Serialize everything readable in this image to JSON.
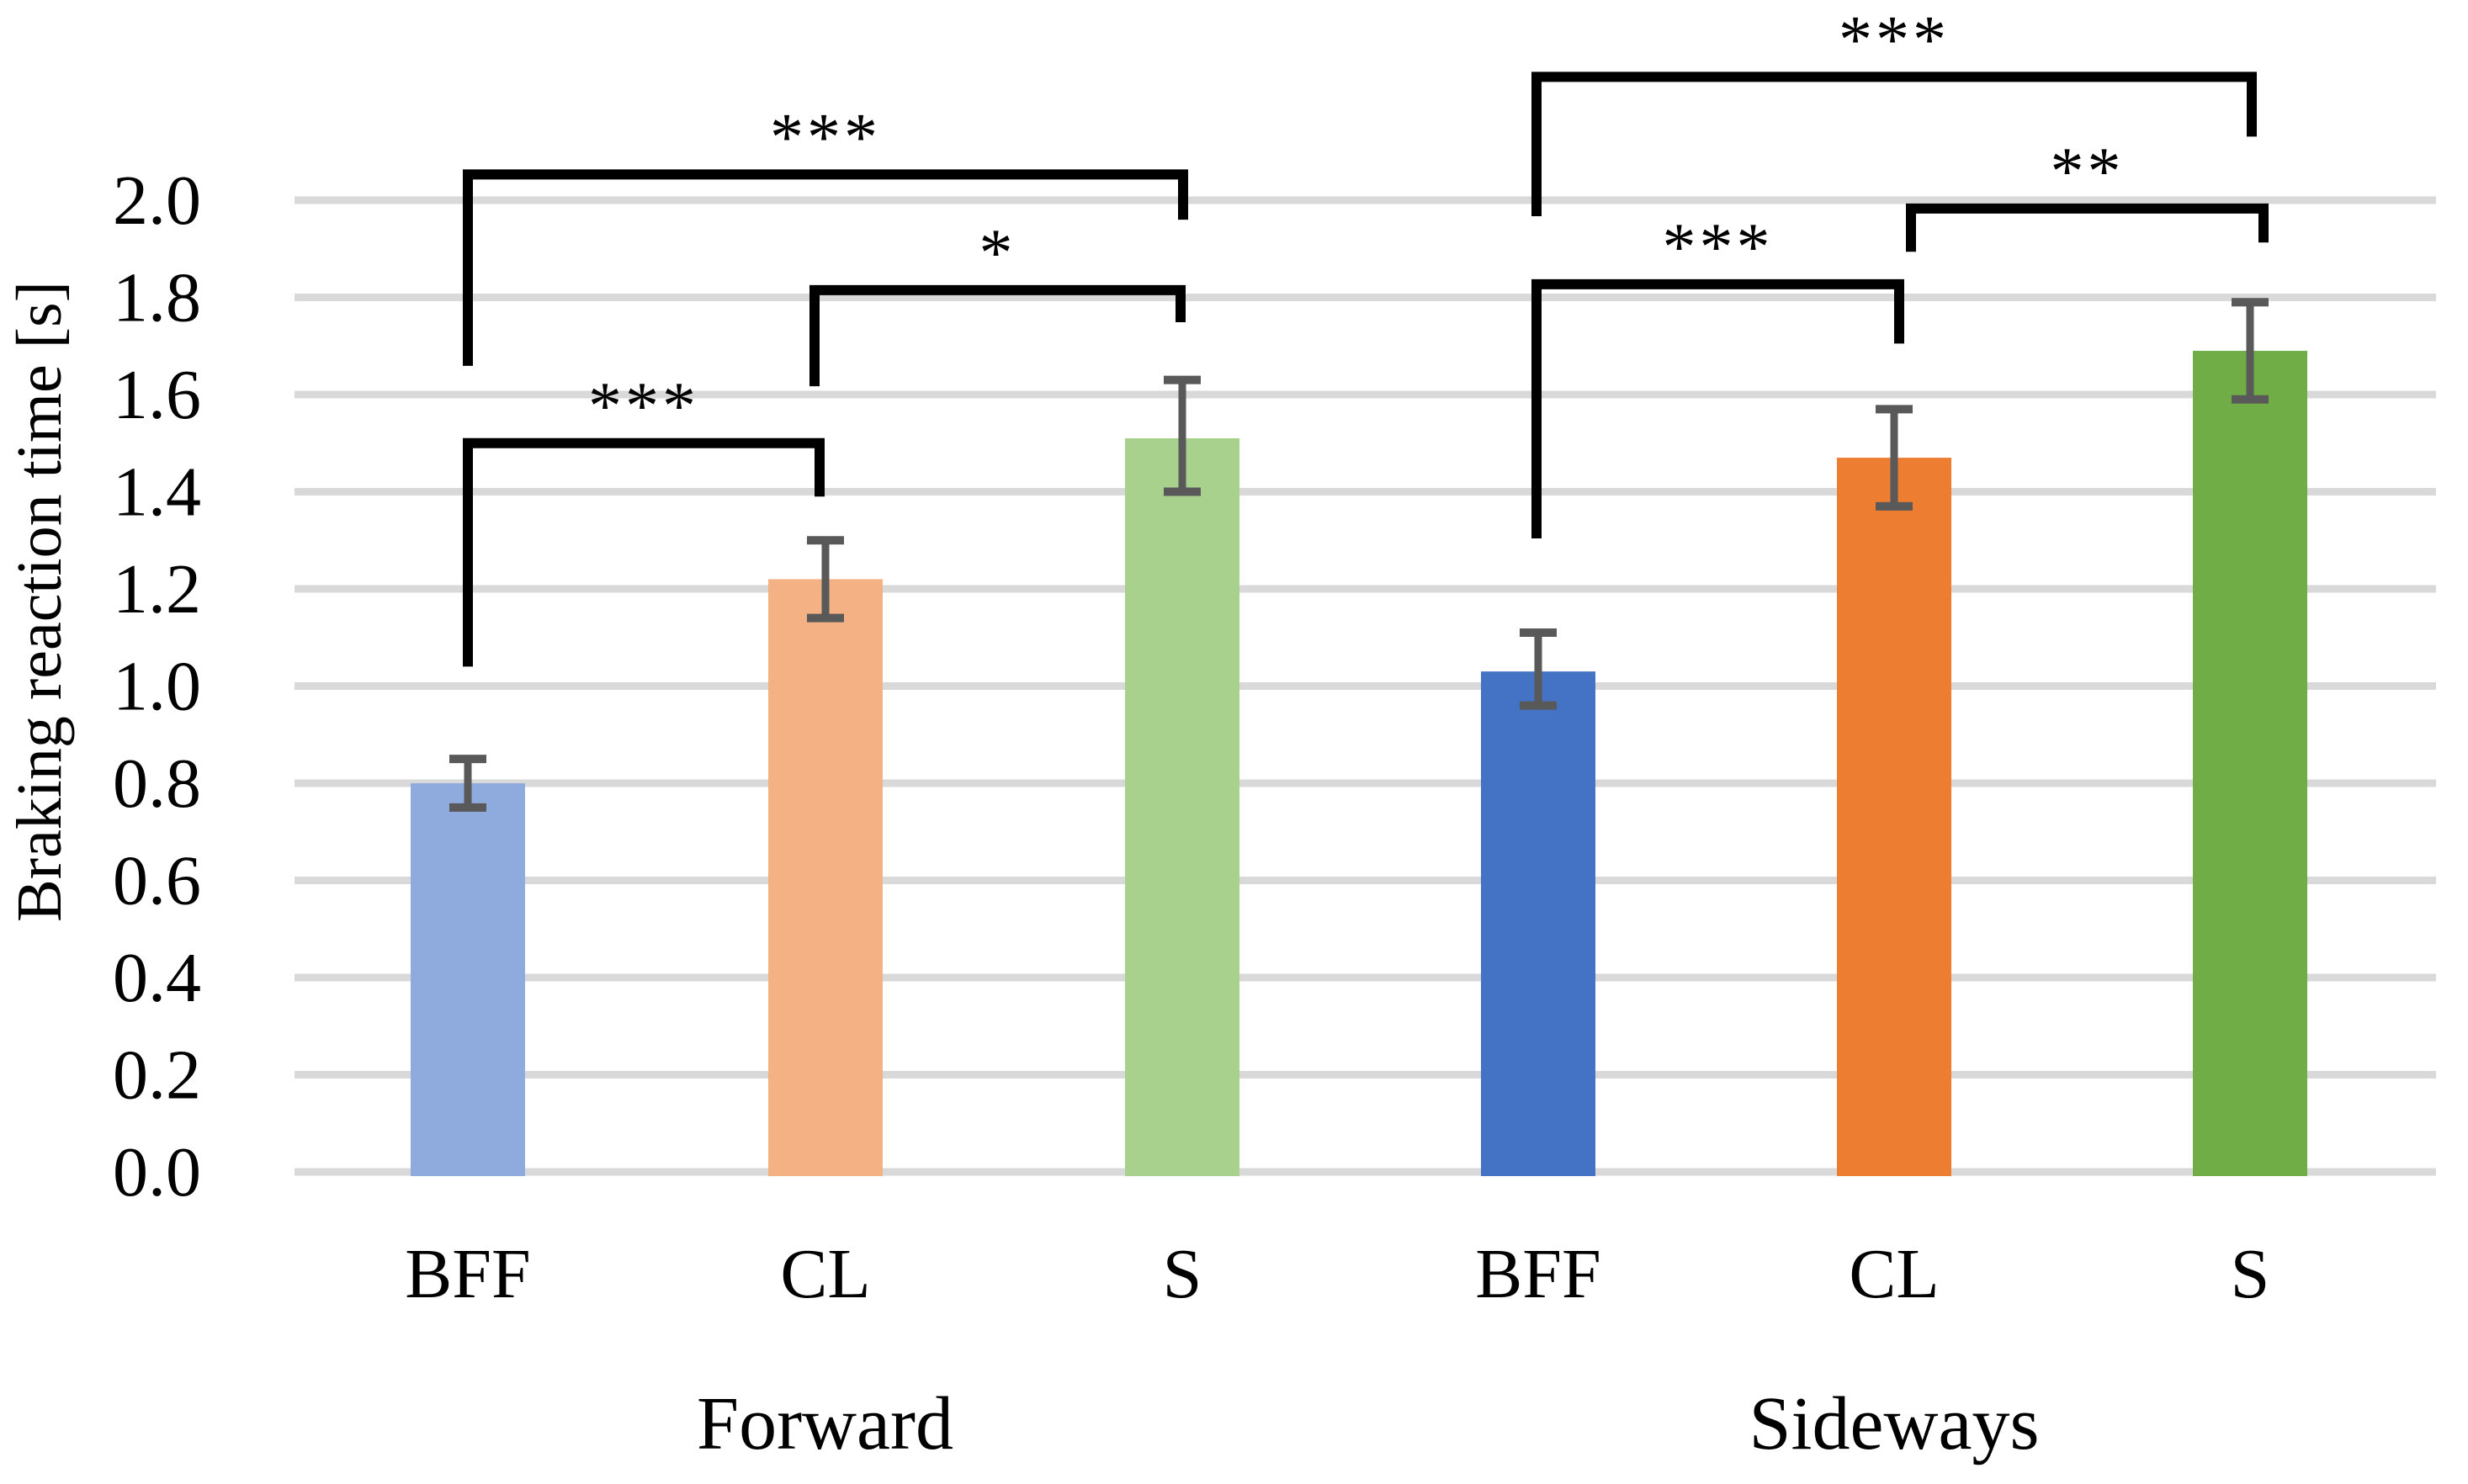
{
  "chart_data": {
    "type": "bar",
    "title": "",
    "xlabel": "",
    "ylabel": "Braking reaction time [s]",
    "ylim": [
      0.0,
      2.0
    ],
    "ytick_step": 0.2,
    "ytick_labels": [
      "0.0",
      "0.2",
      "0.4",
      "0.6",
      "0.8",
      "1.0",
      "1.2",
      "1.4",
      "1.6",
      "1.8",
      "2.0"
    ],
    "grid": "horizontal",
    "legend_position": "none",
    "gridline_color": "#D9D9D9",
    "error_bar_color": "#595959",
    "bracket_color": "#000000",
    "groups": [
      {
        "label": "Forward",
        "bars": [
          {
            "category": "BFF",
            "value": 0.8,
            "err_low": 0.75,
            "err_high": 0.85,
            "color": "#8FAADC"
          },
          {
            "category": "CL",
            "value": 1.22,
            "err_low": 1.14,
            "err_high": 1.3,
            "color": "#F4B183"
          },
          {
            "category": "S",
            "value": 1.51,
            "err_low": 1.4,
            "err_high": 1.63,
            "color": "#A9D18E"
          }
        ]
      },
      {
        "label": "Sideways",
        "bars": [
          {
            "category": "BFF",
            "value": 1.03,
            "err_low": 0.96,
            "err_high": 1.11,
            "color": "#4472C4"
          },
          {
            "category": "CL",
            "value": 1.47,
            "err_low": 1.37,
            "err_high": 1.57,
            "color": "#ED7D31"
          },
          {
            "category": "S",
            "value": 1.69,
            "err_low": 1.59,
            "err_high": 1.79,
            "color": "#70AD47"
          }
        ]
      }
    ],
    "significance_brackets": [
      {
        "group": "Forward",
        "from": "BFF",
        "to": "CL",
        "label": "***",
        "height": 1.5,
        "drop_from": 1.04,
        "drop_to": 1.39
      },
      {
        "group": "Forward",
        "from": "CL",
        "to": "S",
        "label": "*",
        "height": 1.815,
        "drop_from": 1.617,
        "drop_to": 1.749
      },
      {
        "group": "Forward",
        "from": "BFF",
        "to": "S",
        "label": "***",
        "height": 2.053,
        "drop_from": 1.659,
        "drop_to": 1.96
      },
      {
        "group": "Sideways",
        "from": "BFF",
        "to": "CL",
        "label": "***",
        "height": 1.827,
        "drop_from": 1.304,
        "drop_to": 1.705
      },
      {
        "group": "Sideways",
        "from": "CL",
        "to": "S",
        "label": "**",
        "height": 1.983,
        "drop_from": 1.894,
        "drop_to": 1.913
      },
      {
        "group": "Sideways",
        "from": "BFF",
        "to": "S",
        "label": "***",
        "height": 2.254,
        "drop_from": 1.967,
        "drop_to": 2.131
      }
    ]
  }
}
